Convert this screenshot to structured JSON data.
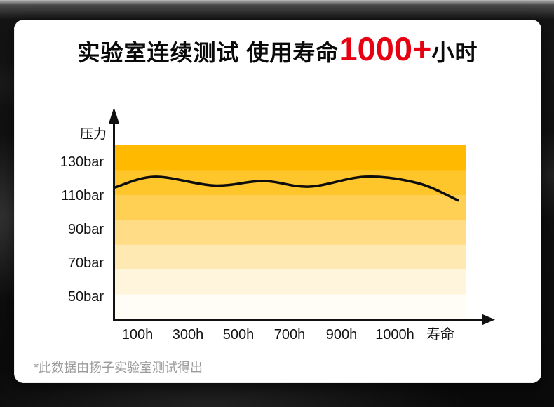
{
  "page": {
    "background_color": "#0a0a0a",
    "card_color": "#ffffff"
  },
  "title": {
    "prefix": "实验室连续测试 使用寿命",
    "highlight": "1000+",
    "suffix": "小时",
    "highlight_color": "#e60012"
  },
  "footnote": "*此数据由扬子实验室测试得出",
  "colors": {
    "axis": "#111111",
    "tick_text": "#111111",
    "footnote_text": "#9b9b9b",
    "accent_red": "#e60012",
    "curve": "#0d0d0d"
  },
  "chart_data": {
    "type": "line",
    "title": "实验室连续测试 使用寿命1000+小时",
    "ylabel": "压力",
    "xlabel": "寿命",
    "y_unit": "bar",
    "x_unit": "h",
    "y_ticks": [
      "130bar",
      "110bar",
      "90bar",
      "70bar",
      "50bar"
    ],
    "y_tick_values": [
      130,
      110,
      90,
      70,
      50
    ],
    "x_ticks": [
      "100h",
      "300h",
      "500h",
      "700h",
      "900h",
      "1000h",
      "寿命"
    ],
    "ylim": [
      40,
      140
    ],
    "grid": false,
    "legend": false,
    "band_colors": [
      "#ffba00",
      "#ffc62b",
      "#ffd054",
      "#ffdc85",
      "#ffe9b2",
      "#fff4dc",
      "#fffdf5"
    ],
    "series": [
      {
        "name": "压力",
        "color": "#0d0d0d",
        "points": [
          {
            "x_frac": 0.0,
            "bar": 115.0
          },
          {
            "x_frac": 0.114,
            "bar": 121.3
          },
          {
            "x_frac": 0.284,
            "bar": 116.1
          },
          {
            "x_frac": 0.424,
            "bar": 118.8
          },
          {
            "x_frac": 0.554,
            "bar": 115.4
          },
          {
            "x_frac": 0.714,
            "bar": 121.3
          },
          {
            "x_frac": 0.864,
            "bar": 117.5
          },
          {
            "x_frac": 0.978,
            "bar": 107.3
          }
        ],
        "approx_readings_at_ticks": {
          "100h": 120,
          "300h": 116,
          "500h": 118,
          "700h": 116,
          "900h": 121,
          "1000h": 118,
          "寿命": 107
        }
      }
    ]
  }
}
